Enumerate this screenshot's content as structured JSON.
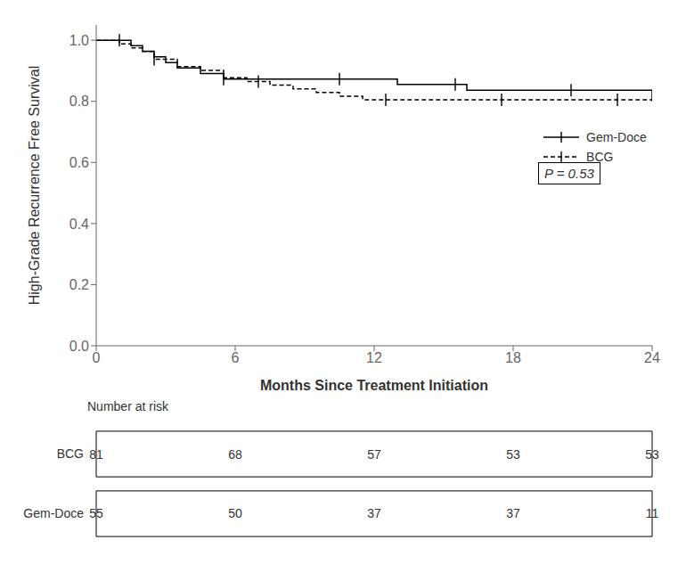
{
  "chart_data": {
    "type": "step",
    "xlabel": "Months Since Treatment Initiation",
    "ylabel": "High-Grade Recurrence Free Survival",
    "xlim": [
      0,
      24
    ],
    "ylim": [
      0.0,
      1.05
    ],
    "xticks": [
      0,
      6,
      12,
      18,
      24
    ],
    "yticks": [
      {
        "value": 0.0,
        "label": "0.0"
      },
      0.2,
      0.4,
      0.6,
      0.8,
      {
        "value": 1.0,
        "label": "1.0"
      }
    ],
    "grid": false,
    "legend": "right",
    "annotation": "P = 0.53",
    "series": [
      {
        "name": "Gem-Doce",
        "color": "#000000",
        "line_style": "solid",
        "marker": "|",
        "x": [
          0,
          1.5,
          2.0,
          2.5,
          3.0,
          3.5,
          4.5,
          5.5,
          6.5,
          8.0,
          11.0,
          13.0,
          16.0,
          24.0
        ],
        "values": [
          1.0,
          0.982,
          0.964,
          0.946,
          0.927,
          0.909,
          0.891,
          0.873,
          0.873,
          0.873,
          0.873,
          0.855,
          0.836,
          0.8
        ],
        "censor_x": [
          1.0,
          5.5,
          10.5,
          15.5,
          20.5
        ],
        "censor_values": [
          1.0,
          0.873,
          0.873,
          0.855,
          0.836
        ]
      },
      {
        "name": "BCG",
        "color": "#000000",
        "line_style": "dashed",
        "marker": "|",
        "x": [
          0,
          1.0,
          1.5,
          2.0,
          2.5,
          3.5,
          4.5,
          5.5,
          6.5,
          7.5,
          8.5,
          9.5,
          10.5,
          11.5,
          12.0,
          24.0
        ],
        "values": [
          1.0,
          0.988,
          0.975,
          0.963,
          0.938,
          0.914,
          0.901,
          0.877,
          0.865,
          0.853,
          0.841,
          0.829,
          0.817,
          0.805,
          0.805,
          0.805
        ],
        "censor_x": [
          2.5,
          7.0,
          12.5,
          17.5,
          22.5
        ],
        "censor_values": [
          0.938,
          0.865,
          0.805,
          0.805,
          0.805
        ]
      }
    ],
    "risk_table": {
      "title": "Number at risk",
      "times": [
        0,
        6,
        12,
        18,
        24
      ],
      "rows": [
        {
          "name": "BCG",
          "values": [
            81,
            68,
            57,
            53,
            53
          ]
        },
        {
          "name": "Gem-Doce",
          "values": [
            55,
            50,
            37,
            37,
            11
          ]
        }
      ]
    }
  }
}
